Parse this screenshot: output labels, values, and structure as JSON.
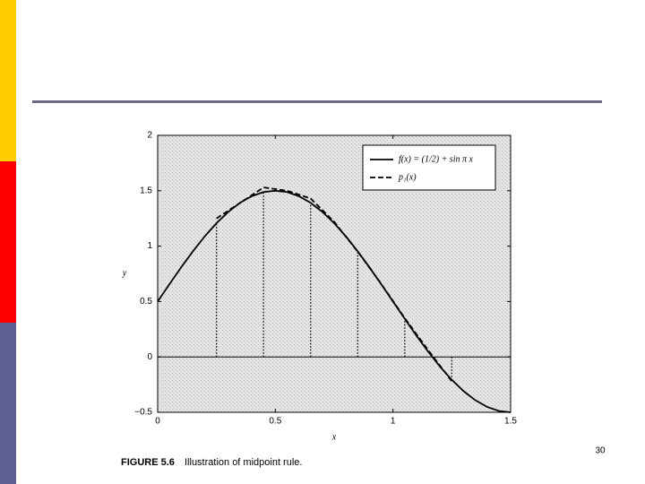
{
  "chart_data": {
    "type": "line",
    "series": [
      {
        "name": "f(x) = (1/2) + sin π x",
        "color": "#000000",
        "dash": "none",
        "x": [
          0,
          0.05,
          0.1,
          0.15,
          0.2,
          0.25,
          0.3,
          0.35,
          0.4,
          0.45,
          0.5,
          0.55,
          0.6,
          0.65,
          0.7,
          0.75,
          0.8,
          0.85,
          0.9,
          0.95,
          1.0,
          1.05,
          1.1,
          1.15,
          1.2,
          1.25,
          1.3,
          1.35,
          1.4,
          1.45,
          1.5
        ],
        "values": [
          0.5,
          0.656,
          0.809,
          0.954,
          1.088,
          1.207,
          1.309,
          1.391,
          1.451,
          1.488,
          1.5,
          1.488,
          1.451,
          1.391,
          1.309,
          1.207,
          1.088,
          0.954,
          0.809,
          0.656,
          0.5,
          0.344,
          0.191,
          0.046,
          -0.088,
          -0.207,
          -0.309,
          -0.391,
          -0.451,
          -0.488,
          -0.5
        ]
      },
      {
        "name": "p₁(x)",
        "color": "#000000",
        "dash": "6 3",
        "x": [
          0.25,
          0.35,
          0.45,
          0.55,
          0.65,
          0.75,
          0.85,
          0.95,
          1.05,
          1.15,
          1.25
        ],
        "values": [
          1.25,
          1.39,
          1.53,
          1.5,
          1.43,
          1.22,
          0.95,
          0.66,
          0.35,
          0.06,
          -0.22
        ]
      }
    ],
    "drop_lines": {
      "x": [
        0.25,
        0.45,
        0.65,
        0.85,
        1.05,
        1.25
      ],
      "values": [
        1.207,
        1.488,
        1.391,
        0.954,
        0.344,
        -0.207
      ]
    },
    "hline": 0,
    "xlabel": "x",
    "ylabel": "y",
    "xlim": [
      0,
      1.5
    ],
    "xticks": [
      0,
      0.5,
      1,
      1.5
    ],
    "ylim": [
      -0.5,
      2
    ],
    "yticks": [
      {
        "value": -0.5,
        "label": "−0.5"
      },
      0,
      0.5,
      1,
      1.5,
      2
    ],
    "legend": "upper right"
  },
  "caption": {
    "label": "FIGURE 5.6",
    "text": "Illustration of midpoint rule."
  },
  "page_number": "30"
}
